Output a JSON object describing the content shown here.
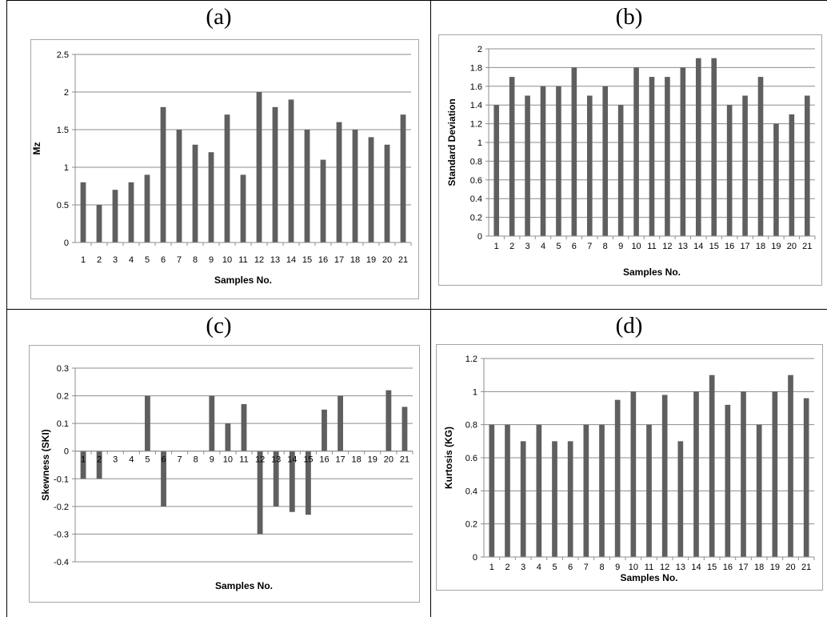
{
  "colors": {
    "bar": "#5f5f5f",
    "gridline": "#8c8c8c",
    "axis": "#8c8c8c",
    "frame": "#a6a6a6"
  },
  "chart_data": [
    {
      "panel": "(a)",
      "type": "bar",
      "categories": [
        "1",
        "2",
        "3",
        "4",
        "5",
        "6",
        "7",
        "8",
        "9",
        "10",
        "11",
        "12",
        "13",
        "14",
        "15",
        "16",
        "17",
        "18",
        "19",
        "20",
        "21"
      ],
      "values": [
        0.8,
        0.5,
        0.7,
        0.8,
        0.9,
        1.8,
        1.5,
        1.3,
        1.2,
        1.7,
        0.9,
        2.0,
        1.8,
        1.9,
        1.5,
        1.1,
        1.6,
        1.5,
        1.4,
        1.3,
        1.7
      ],
      "xlabel": "Samples No.",
      "ylabel": "Mz",
      "ylim": [
        0,
        2.5
      ],
      "yticks": [
        "0",
        "0.5",
        "1",
        "1.5",
        "2",
        "2.5"
      ],
      "grid": true,
      "legend": "none"
    },
    {
      "panel": "(b)",
      "type": "bar",
      "categories": [
        "1",
        "2",
        "3",
        "4",
        "5",
        "6",
        "7",
        "8",
        "9",
        "10",
        "11",
        "12",
        "13",
        "14",
        "15",
        "16",
        "17",
        "18",
        "19",
        "20",
        "21"
      ],
      "values": [
        1.4,
        1.7,
        1.5,
        1.6,
        1.6,
        1.8,
        1.5,
        1.6,
        1.4,
        1.8,
        1.7,
        1.7,
        1.8,
        1.9,
        1.9,
        1.4,
        1.5,
        1.7,
        1.2,
        1.3,
        1.5
      ],
      "xlabel": "Samples No.",
      "ylabel": "Standard Deviation",
      "ylim": [
        0,
        2
      ],
      "yticks": [
        "0",
        "0.2",
        "0.4",
        "0.6",
        "0.8",
        "1",
        "1.2",
        "1.4",
        "1.6",
        "1.8",
        "2"
      ],
      "grid": true,
      "legend": "none"
    },
    {
      "panel": "(c)",
      "type": "bar",
      "categories": [
        "1",
        "2",
        "3",
        "4",
        "5",
        "6",
        "7",
        "8",
        "9",
        "10",
        "11",
        "12",
        "13",
        "14",
        "15",
        "16",
        "17",
        "18",
        "19",
        "20",
        "21"
      ],
      "values": [
        -0.1,
        -0.1,
        0,
        0,
        0.2,
        -0.2,
        0,
        0,
        0.2,
        0.1,
        0.17,
        -0.3,
        -0.2,
        -0.22,
        -0.23,
        0.15,
        0.2,
        0,
        0,
        0.22,
        0.16
      ],
      "xlabel": "Samples No.",
      "ylabel": "Skewness (SKI)",
      "ylim": [
        -0.4,
        0.3
      ],
      "yticks": [
        "-0.4",
        "-0.3",
        "-0.2",
        "-0.1",
        "0",
        "0.1",
        "0.2",
        "0.3"
      ],
      "grid": true,
      "legend": "none"
    },
    {
      "panel": "(d)",
      "type": "bar",
      "categories": [
        "1",
        "2",
        "3",
        "4",
        "5",
        "6",
        "7",
        "8",
        "9",
        "10",
        "11",
        "12",
        "13",
        "14",
        "15",
        "16",
        "17",
        "18",
        "19",
        "20",
        "21"
      ],
      "values": [
        0.8,
        0.8,
        0.7,
        0.8,
        0.7,
        0.7,
        0.8,
        0.8,
        0.95,
        1.0,
        0.8,
        0.98,
        0.7,
        1.0,
        1.1,
        0.92,
        1.0,
        0.8,
        1.0,
        1.1,
        0.96
      ],
      "xlabel": "Samples No.",
      "ylabel": "Kurtosis (KG)",
      "ylim": [
        0,
        1.2
      ],
      "yticks": [
        "0",
        "0.2",
        "0.4",
        "0.6",
        "0.8",
        "1",
        "1.2"
      ],
      "grid": true,
      "legend": "none"
    }
  ]
}
